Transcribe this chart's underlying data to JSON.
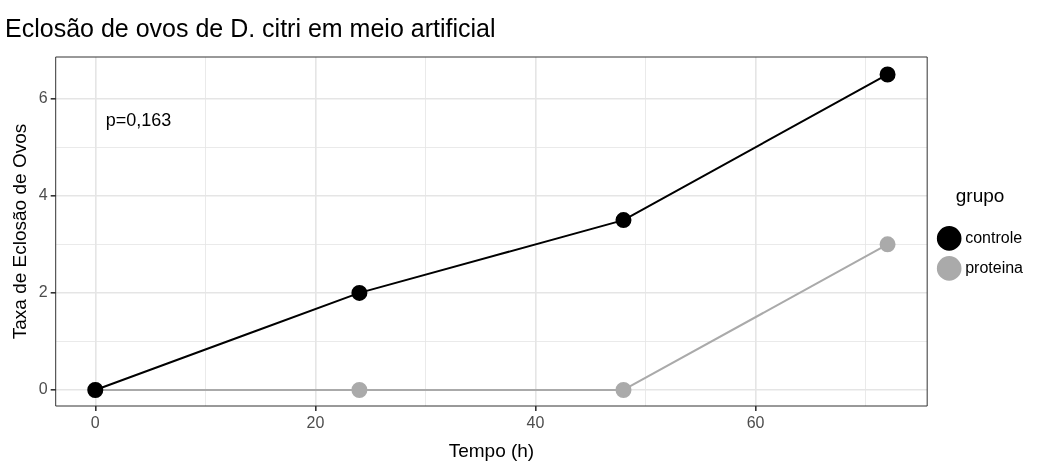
{
  "chart_data": {
    "type": "line",
    "title": "Eclosão de ovos de D. citri em meio artificial",
    "xlabel": "Tempo (h)",
    "ylabel": "Taxa de Eclosão de Ovos",
    "legend_title": "grupo",
    "x": [
      0,
      24,
      48,
      72
    ],
    "series": [
      {
        "name": "controle",
        "color": "#000000",
        "values": [
          0,
          2,
          3.5,
          6.5
        ]
      },
      {
        "name": "proteina",
        "color": "#aaaaaa",
        "values": [
          0,
          0,
          0,
          3
        ]
      }
    ],
    "xlim": [
      -3.6,
      75.6
    ],
    "ylim": [
      -0.33,
      6.86
    ],
    "xticks": [
      0,
      {
        "value": 10,
        "label": null
      },
      20,
      {
        "value": 30,
        "label": null
      },
      40,
      {
        "value": 50,
        "label": null
      },
      60,
      {
        "value": 70,
        "label": null
      }
    ],
    "yticks": [
      0,
      {
        "value": 1,
        "label": null
      },
      2,
      {
        "value": 3,
        "label": null
      },
      4,
      {
        "value": 5,
        "label": null
      },
      6
    ],
    "annotations": [
      "p=0,163"
    ],
    "grid": true,
    "legend": "right",
    "marker": "circle",
    "line_style": "solid"
  }
}
